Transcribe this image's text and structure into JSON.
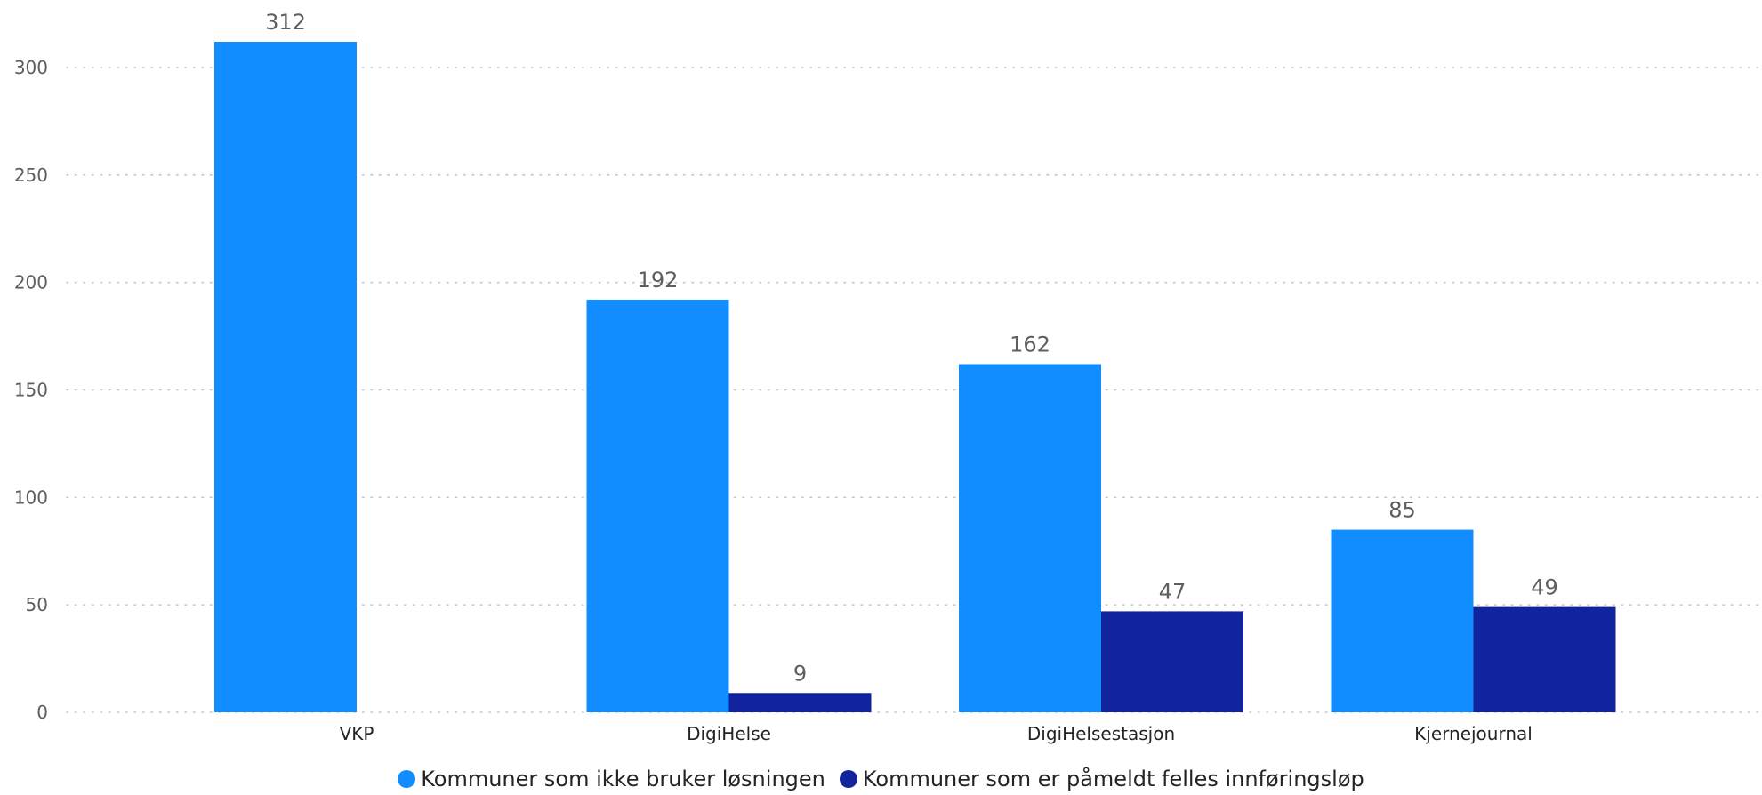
{
  "chart_data": {
    "type": "bar",
    "categories": [
      "VKP",
      "DigiHelse",
      "DigiHelsestasjon",
      "Kjernejournal"
    ],
    "series": [
      {
        "name": "Kommuner som ikke bruker løsningen",
        "values": [
          312,
          192,
          162,
          85
        ],
        "color": "#118dff"
      },
      {
        "name": "Kommuner som er påmeldt felles innføringsløp",
        "values": [
          null,
          9,
          47,
          49
        ],
        "color": "#12239e"
      }
    ],
    "ylim": [
      0,
      300
    ],
    "yticks": [
      0,
      50,
      100,
      150,
      200,
      250,
      300
    ],
    "grid": true,
    "legend_position": "bottom"
  }
}
